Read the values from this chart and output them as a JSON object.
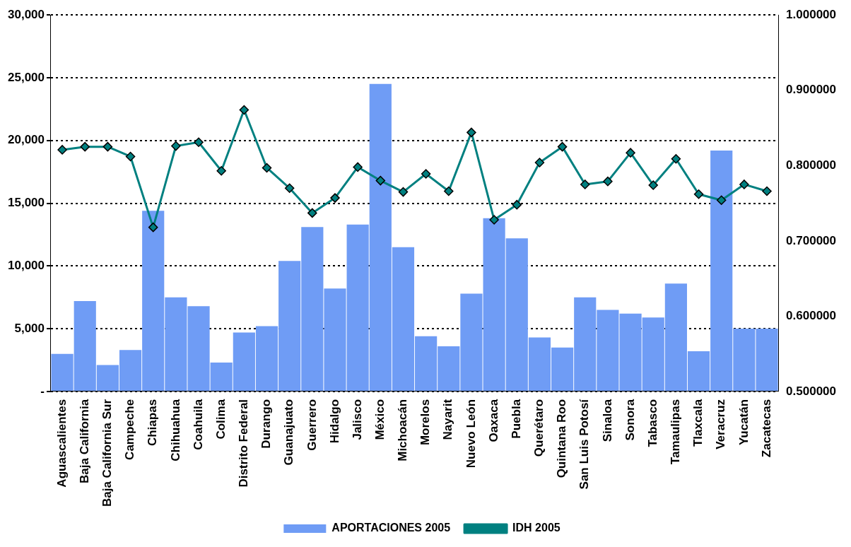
{
  "chart_data": {
    "type": "bar",
    "categories": [
      "Aguascalientes",
      "Baja California",
      "Baja California Sur",
      "Campeche",
      "Chiapas",
      "Chihuahua",
      "Coahuila",
      "Colima",
      "Distrito Federal",
      "Durango",
      "Guanajuato",
      "Guerrero",
      "Hidalgo",
      "Jalisco",
      "México",
      "Michoacán",
      "Morelos",
      "Nayarit",
      "Nuevo León",
      "Oaxaca",
      "Puebla",
      "Querétaro",
      "Quintana Roo",
      "San Luis Potosí",
      "Sinaloa",
      "Sonora",
      "Tabasco",
      "Tamaulipas",
      "Tlaxcala",
      "Veracruz",
      "Yucatán",
      "Zacatecas"
    ],
    "series": [
      {
        "name": "APORTACIONES 2005",
        "color": "#6f9cf5",
        "values": [
          3000,
          7200,
          2100,
          3300,
          14400,
          7500,
          6800,
          2300,
          4700,
          5200,
          10400,
          13100,
          8200,
          13300,
          24500,
          11500,
          4400,
          3600,
          7800,
          13800,
          12200,
          4300,
          3500,
          7500,
          6500,
          6200,
          5900,
          8600,
          3200,
          19200,
          5000,
          5000
        ]
      },
      {
        "name": "IDH 2005",
        "type": "line",
        "axis": "y2",
        "color": "#008080",
        "marker": "diamond",
        "values": [
          0.821,
          0.825,
          0.825,
          0.812,
          0.718,
          0.826,
          0.831,
          0.793,
          0.874,
          0.797,
          0.77,
          0.737,
          0.757,
          0.798,
          0.78,
          0.765,
          0.789,
          0.766,
          0.844,
          0.728,
          0.748,
          0.804,
          0.825,
          0.775,
          0.779,
          0.817,
          0.774,
          0.809,
          0.762,
          0.754,
          0.775,
          0.766
        ]
      }
    ],
    "ylim": [
      0,
      30000
    ],
    "yticks": [
      {
        "value": 0,
        "label": "-"
      },
      {
        "value": 5000,
        "label": "5,000"
      },
      {
        "value": 10000,
        "label": "10,000"
      },
      {
        "value": 15000,
        "label": "15,000"
      },
      {
        "value": 20000,
        "label": "20,000"
      },
      {
        "value": 25000,
        "label": "25,000"
      },
      {
        "value": 30000,
        "label": "30,000"
      }
    ],
    "y2lim": [
      0.5,
      1.0
    ],
    "y2ticks": [
      {
        "value": 0.5,
        "label": "0.500000"
      },
      {
        "value": 0.6,
        "label": "0.600000"
      },
      {
        "value": 0.7,
        "label": "0.700000"
      },
      {
        "value": 0.8,
        "label": "0.800000"
      },
      {
        "value": 0.9,
        "label": "0.900000"
      },
      {
        "value": 1.0,
        "label": "1.000000"
      }
    ],
    "grid": "y",
    "legend": "bottom"
  }
}
